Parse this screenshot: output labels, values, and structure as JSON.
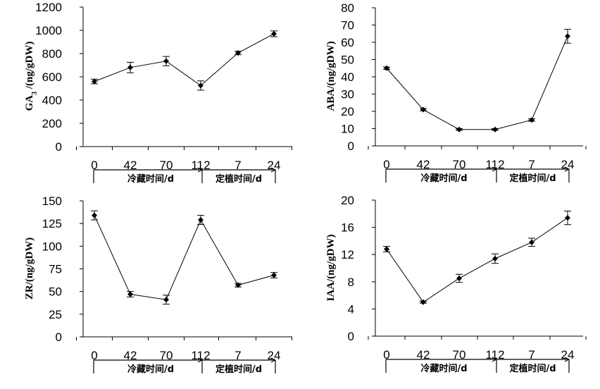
{
  "period_labels": {
    "storage": "冷藏时间/d",
    "planting": "定植时间/d"
  },
  "chart_data": [
    {
      "type": "line",
      "ylabel_main": "GA",
      "ylabel_sub": "3",
      "ylabel_rest": " /(ng/gDW)",
      "categories": [
        "0",
        "42",
        "70",
        "112",
        "7",
        "24"
      ],
      "values": [
        560,
        680,
        735,
        525,
        805,
        970
      ],
      "errors": [
        20,
        45,
        40,
        40,
        15,
        25
      ],
      "ylim": [
        0,
        1200
      ],
      "yticks": [
        "0",
        "200",
        "400",
        "600",
        "800",
        "1000",
        "1200"
      ]
    },
    {
      "type": "line",
      "ylabel_main": "ABA/(ng/gDW)",
      "categories": [
        "0",
        "42",
        "70",
        "112",
        "7",
        "24"
      ],
      "values": [
        45,
        21,
        9.5,
        9.5,
        15,
        63.5
      ],
      "errors": [
        0.7,
        0.7,
        0.5,
        0.5,
        0.7,
        4
      ],
      "ylim": [
        0,
        80
      ],
      "yticks": [
        "0",
        "10",
        "20",
        "30",
        "40",
        "50",
        "60",
        "70",
        "80"
      ]
    },
    {
      "type": "line",
      "ylabel_main": "ZR/(ng/gDW)",
      "categories": [
        "0",
        "42",
        "70",
        "112",
        "7",
        "24"
      ],
      "values": [
        134,
        47,
        41,
        129,
        57,
        68
      ],
      "errors": [
        5,
        3,
        5,
        5,
        2,
        3
      ],
      "ylim": [
        0,
        150
      ],
      "yticks": [
        "0",
        "25",
        "50",
        "75",
        "100",
        "125",
        "150"
      ]
    },
    {
      "type": "line",
      "ylabel_main": "IAA/(ng/gDW)",
      "categories": [
        "0",
        "42",
        "70",
        "112",
        "7",
        "24"
      ],
      "values": [
        12.8,
        5.0,
        8.5,
        11.4,
        13.8,
        17.4
      ],
      "errors": [
        0.4,
        0.15,
        0.6,
        0.7,
        0.6,
        1.0
      ],
      "ylim": [
        0,
        20
      ],
      "yticks": [
        "0",
        "4",
        "8",
        "12",
        "16",
        "20"
      ]
    }
  ]
}
